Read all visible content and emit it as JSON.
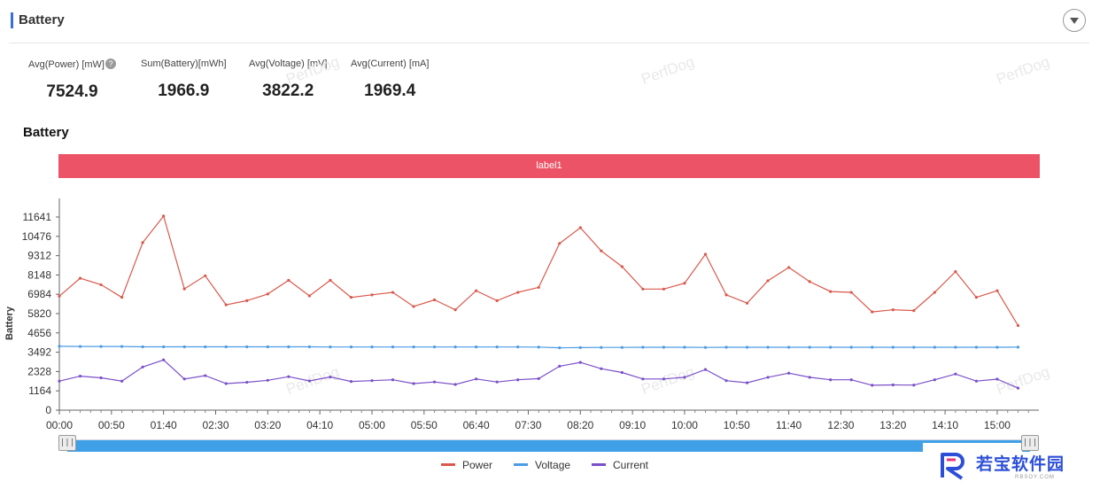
{
  "header": {
    "title": "Battery"
  },
  "stats": [
    {
      "label": "Avg(Power) [mW]",
      "value": "7524.9",
      "help": "?"
    },
    {
      "label": "Sum(Battery)[mWh]",
      "value": "1966.9"
    },
    {
      "label": "Avg(Voltage) [mV]",
      "value": "3822.2"
    },
    {
      "label": "Avg(Current) [mA]",
      "value": "1969.4"
    }
  ],
  "watermark": "PerfDog",
  "chart_title": "Battery",
  "label_band": "label1",
  "chart_data": {
    "type": "line",
    "ylabel": "Battery",
    "ylim": [
      0,
      11641
    ],
    "y_ticks": [
      0,
      1164,
      2328,
      3492,
      4656,
      5820,
      6984,
      8148,
      9312,
      10476,
      11641
    ],
    "x_ticks": [
      "00:00",
      "00:50",
      "01:40",
      "02:30",
      "03:20",
      "04:10",
      "05:00",
      "05:50",
      "06:40",
      "07:30",
      "08:20",
      "09:10",
      "10:00",
      "10:50",
      "11:40",
      "12:30",
      "13:20",
      "14:10",
      "15:00"
    ],
    "x_tick_start_seconds": 0,
    "x_tick_step_seconds": 50,
    "x_end_seconds": 940,
    "x_sample_step_seconds": 20,
    "series": [
      {
        "name": "Power",
        "color": "#d9594c",
        "values": [
          6870,
          7950,
          7560,
          6800,
          10100,
          11700,
          7310,
          8100,
          6350,
          6600,
          7000,
          7830,
          6890,
          7830,
          6800,
          6950,
          7100,
          6250,
          6650,
          6050,
          7200,
          6600,
          7100,
          7400,
          10050,
          11000,
          9600,
          8650,
          7300,
          7300,
          7650,
          9400,
          6950,
          6450,
          7800,
          8600,
          7750,
          7150,
          7100,
          5920,
          6050,
          6000,
          7100,
          8350,
          6800,
          7200,
          5100
        ]
      },
      {
        "name": "Voltage",
        "color": "#4d9be2",
        "values": [
          3850,
          3840,
          3840,
          3840,
          3820,
          3820,
          3820,
          3820,
          3820,
          3820,
          3820,
          3820,
          3820,
          3810,
          3810,
          3810,
          3810,
          3810,
          3810,
          3810,
          3810,
          3810,
          3810,
          3800,
          3760,
          3770,
          3780,
          3780,
          3790,
          3790,
          3790,
          3780,
          3790,
          3790,
          3790,
          3790,
          3790,
          3790,
          3790,
          3790,
          3790,
          3790,
          3790,
          3790,
          3790,
          3790,
          3800
        ]
      },
      {
        "name": "Current",
        "color": "#7a4fc8",
        "values": [
          1750,
          2050,
          1950,
          1750,
          2600,
          3030,
          1880,
          2080,
          1600,
          1680,
          1800,
          2020,
          1760,
          2000,
          1730,
          1780,
          1830,
          1600,
          1700,
          1550,
          1880,
          1700,
          1830,
          1900,
          2650,
          2880,
          2500,
          2270,
          1880,
          1880,
          1980,
          2450,
          1780,
          1650,
          1980,
          2230,
          1980,
          1830,
          1830,
          1500,
          1520,
          1510,
          1830,
          2180,
          1750,
          1870,
          1330
        ]
      }
    ]
  },
  "logo": {
    "name": "若宝软件园",
    "sub": "RBSOY.COM"
  },
  "slider": {
    "handle_glyph": "|||"
  }
}
